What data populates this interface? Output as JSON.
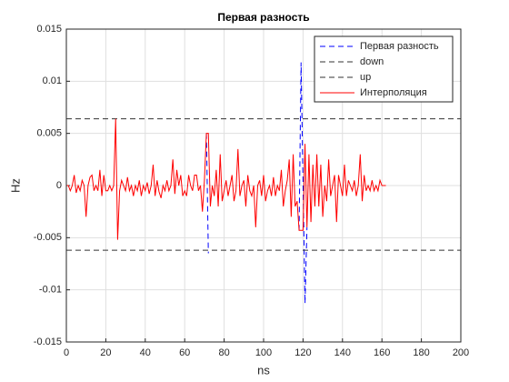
{
  "chart_data": {
    "type": "line",
    "title": "Первая разность",
    "xlabel": "ns",
    "ylabel": "Hz",
    "xlim": [
      0,
      200
    ],
    "xticks": [
      0,
      20,
      40,
      60,
      80,
      100,
      120,
      140,
      160,
      180,
      200
    ],
    "ylim": [
      -0.015,
      0.015
    ],
    "yticks": [
      -0.015,
      -0.01,
      -0.005,
      0,
      0.005,
      0.01,
      0.015
    ],
    "grid": true,
    "legend": "northeast",
    "series": [
      {
        "name": "Первая разность",
        "color": "#0000ff",
        "linestyle": "--",
        "x": [
          71,
          72,
          73,
          118,
          119,
          121,
          122
        ],
        "values": [
          0.005,
          -0.0065,
          null,
          -0.0043,
          0.0118,
          -0.0113,
          -0.004
        ]
      },
      {
        "name": "down",
        "color": "#333333",
        "linestyle": "--",
        "x": [
          0,
          200
        ],
        "values": [
          -0.0062,
          -0.0062
        ]
      },
      {
        "name": "up",
        "color": "#333333",
        "linestyle": "--",
        "x": [
          0,
          200
        ],
        "values": [
          0.0064,
          0.0064
        ]
      },
      {
        "name": "Интерполяция",
        "color": "#ff0000",
        "linestyle": "-",
        "x": [
          0,
          1,
          2,
          3,
          4,
          5,
          6,
          7,
          8,
          9,
          10,
          11,
          12,
          13,
          14,
          15,
          16,
          17,
          18,
          19,
          20,
          21,
          22,
          23,
          24,
          25,
          26,
          27,
          28,
          29,
          30,
          31,
          32,
          33,
          34,
          35,
          36,
          37,
          38,
          39,
          40,
          41,
          42,
          43,
          44,
          45,
          46,
          47,
          48,
          49,
          50,
          51,
          52,
          53,
          54,
          55,
          56,
          57,
          58,
          59,
          60,
          61,
          62,
          63,
          64,
          65,
          66,
          67,
          68,
          69,
          70,
          71,
          72,
          73,
          74,
          75,
          76,
          77,
          78,
          79,
          80,
          81,
          82,
          83,
          84,
          85,
          86,
          87,
          88,
          89,
          90,
          91,
          92,
          93,
          94,
          95,
          96,
          97,
          98,
          99,
          100,
          101,
          102,
          103,
          104,
          105,
          106,
          107,
          108,
          109,
          110,
          111,
          112,
          113,
          114,
          115,
          116,
          117,
          118,
          119,
          120,
          121,
          122,
          123,
          124,
          125,
          126,
          127,
          128,
          129,
          130,
          131,
          132,
          133,
          134,
          135,
          136,
          137,
          138,
          139,
          140,
          141,
          142,
          143,
          144,
          145,
          146,
          147,
          148,
          149,
          150,
          151,
          152,
          153,
          154,
          155,
          156,
          157,
          158,
          159,
          160,
          161,
          162
        ],
        "values": [
          0,
          0,
          -0.0005,
          0,
          0.001,
          -0.0007,
          0,
          -0.0005,
          0.0005,
          0,
          -0.003,
          0,
          0.0008,
          0.001,
          -0.0005,
          0,
          -0.0005,
          0.0015,
          -0.001,
          0.001,
          -0.0005,
          -0.0005,
          0,
          -0.0005,
          0,
          0.0064,
          -0.0052,
          -0.0005,
          0.0005,
          0,
          -0.0005,
          0.0008,
          -0.0005,
          0,
          -0.001,
          0,
          -0.0005,
          0.0005,
          -0.001,
          0,
          -0.0005,
          0.0003,
          -0.0008,
          0,
          0.002,
          -0.001,
          0.0005,
          -0.0006,
          -0.0012,
          0,
          -0.0005,
          0.0005,
          -0.0005,
          0,
          0.0025,
          -0.0008,
          0.0015,
          0,
          0.001,
          -0.001,
          -0.0005,
          -0.001,
          0.001,
          0,
          -0.0005,
          0.001,
          0.001,
          -0.0005,
          0,
          -0.0025,
          0.0005,
          0.005,
          0.005,
          -0.002,
          0,
          -0.001,
          0.0015,
          -0.002,
          0.003,
          -0.0015,
          -0.0005,
          0.0005,
          -0.001,
          0,
          0.001,
          -0.0015,
          -0.0005,
          0.0035,
          -0.001,
          0,
          0.0005,
          -0.002,
          0.001,
          -0.0005,
          -0.001,
          0,
          -0.004,
          0,
          0.0005,
          -0.001,
          0.001,
          -0.0015,
          -0.0005,
          0,
          -0.001,
          0.0008,
          -0.001,
          0,
          -0.0005,
          0.0015,
          -0.002,
          -0.0005,
          0.0005,
          0.0025,
          -0.003,
          0.003,
          -0.002,
          -0.0015,
          -0.0043,
          -0.0043,
          -0.0043,
          0.004,
          -0.004,
          0.003,
          -0.0035,
          0.002,
          -0.002,
          0.003,
          -0.002,
          0.002,
          -0.003,
          0,
          -0.0015,
          0.0025,
          -0.001,
          0,
          0.001,
          -0.0035,
          0.001,
          0,
          -0.001,
          0.002,
          -0.001,
          0.0005,
          0,
          -0.0005,
          0.0005,
          -0.001,
          0,
          0.003,
          -0.0015,
          0.001,
          -0.0005,
          0,
          -0.0005,
          0.0005,
          -0.0005,
          0,
          -0.0005,
          0.0005,
          0,
          0,
          0
        ]
      }
    ]
  }
}
